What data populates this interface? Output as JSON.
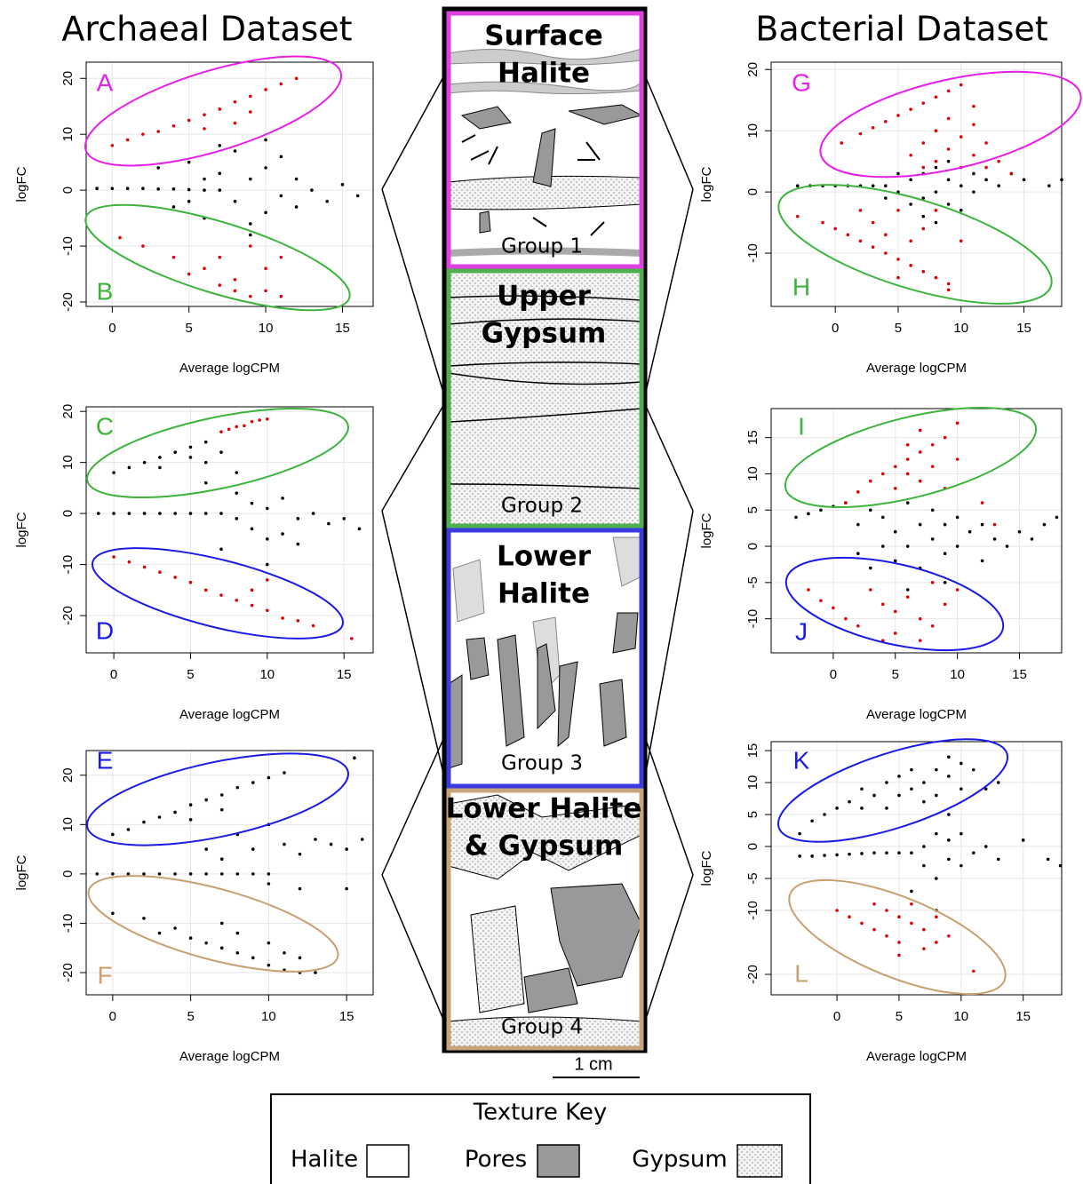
{
  "titles": {
    "left": "Archaeal Dataset",
    "right": "Bacterial Dataset"
  },
  "core": {
    "sections": [
      {
        "title": [
          "Surface",
          "Halite"
        ],
        "group": "Group 1",
        "color": "#e040e0"
      },
      {
        "title": [
          "Upper",
          "Gypsum"
        ],
        "group": "Group 2",
        "color": "#50b050"
      },
      {
        "title": [
          "Lower",
          "Halite"
        ],
        "group": "Group 3",
        "color": "#3a3ae0"
      },
      {
        "title": [
          "Lower Halite",
          "& Gypsum"
        ],
        "group": "Group 4",
        "color": "#c8a47a"
      }
    ],
    "scale": "1 cm"
  },
  "texture_key": {
    "title": "Texture Key",
    "items": [
      "Halite",
      "Pores",
      "Gypsum"
    ]
  },
  "chart_data": [
    {
      "type": "scatter",
      "xlabel": "Average logCPM",
      "ylabel": "logFC",
      "xlim": [
        -1.7,
        17.0
      ],
      "ylim": [
        -20.8,
        22.9
      ],
      "xticks": [
        0,
        5,
        10,
        15
      ],
      "yticks": [
        -20,
        -10,
        0,
        10,
        20
      ],
      "grid": true,
      "annotations": [
        {
          "text": "A",
          "color": "#e81ee8"
        },
        {
          "text": "B",
          "color": "#3cb43c"
        }
      ],
      "series": [
        {
          "color": "#000000",
          "x": [
            -1,
            0,
            1,
            2,
            3,
            4,
            5,
            6,
            7,
            3,
            4,
            5,
            6,
            7,
            8,
            8,
            9,
            9,
            10,
            10,
            11,
            11,
            12,
            12,
            13,
            14,
            15,
            16,
            7,
            9,
            10,
            6,
            5
          ],
          "values": [
            0.3,
            0.3,
            0.3,
            0.3,
            0.2,
            0.2,
            0.1,
            0,
            0,
            4,
            -3,
            5,
            -5,
            3,
            -2,
            7,
            -6,
            2,
            4,
            -4,
            -1,
            6,
            -3,
            2,
            0,
            -2,
            1,
            -1,
            8,
            -8,
            9,
            2,
            -2
          ]
        },
        {
          "color": "#e00000",
          "x": [
            0,
            1,
            2,
            3,
            4,
            5,
            6,
            7,
            8,
            9,
            10,
            11,
            12,
            6,
            8,
            9,
            0.5,
            2,
            4,
            6,
            8,
            10,
            11,
            5,
            7,
            8,
            9,
            10,
            11,
            7,
            9
          ],
          "values": [
            8,
            9,
            10,
            10.5,
            11.5,
            12.5,
            13.5,
            14.5,
            15.8,
            16.8,
            18,
            19,
            20,
            11,
            12,
            14,
            -8.5,
            -10,
            -12,
            -14,
            -16,
            -18,
            -19,
            -15,
            -12,
            -18,
            -10,
            -14,
            -12,
            -17,
            -19
          ]
        }
      ]
    },
    {
      "type": "scatter",
      "xlabel": "Average logCPM",
      "ylabel": "logFC",
      "xlim": [
        -1.8,
        16.9
      ],
      "ylim": [
        -27.3,
        20.9
      ],
      "xticks": [
        0,
        5,
        10,
        15
      ],
      "yticks": [
        -20,
        -10,
        0,
        10,
        20
      ],
      "grid": true,
      "annotations": [
        {
          "text": "C",
          "color": "#3cb43c"
        },
        {
          "text": "D",
          "color": "#1a1ae6"
        }
      ],
      "series": [
        {
          "color": "#000000",
          "x": [
            0,
            1,
            2,
            3,
            4,
            5,
            6,
            3,
            5,
            6,
            7,
            8,
            -1,
            0,
            1,
            2,
            3,
            4,
            5,
            6,
            7,
            8,
            9,
            9,
            10,
            10,
            11,
            11,
            12,
            12,
            13,
            14,
            15,
            16,
            7,
            8,
            10,
            6
          ],
          "values": [
            8,
            9,
            10,
            11,
            12,
            13,
            14,
            9,
            11,
            10,
            12,
            8,
            0,
            0,
            0,
            0,
            0,
            0,
            0,
            0,
            0,
            -1,
            -3,
            2,
            -5,
            1,
            -4,
            3,
            -6,
            -1,
            0,
            -2,
            -1,
            -3,
            -7,
            4,
            -10,
            6
          ]
        },
        {
          "color": "#e00000",
          "x": [
            7,
            7.5,
            8,
            8.5,
            9,
            9.5,
            10,
            0,
            1,
            2,
            3,
            4,
            5,
            6,
            7,
            8,
            9,
            10,
            11,
            12,
            13,
            15.5,
            9,
            10
          ],
          "values": [
            16,
            16.5,
            17,
            17.2,
            18,
            18.3,
            18.5,
            -8.5,
            -9.5,
            -10.5,
            -11.5,
            -12.5,
            -13.5,
            -15,
            -16,
            -17,
            -18,
            -19,
            -20.5,
            -21,
            -22,
            -24.5,
            -15,
            -13
          ]
        }
      ]
    },
    {
      "type": "scatter",
      "xlabel": "Average logCPM",
      "ylabel": "logFC",
      "xlim": [
        -1.7,
        16.7
      ],
      "ylim": [
        -24.5,
        25
      ],
      "xticks": [
        0,
        5,
        10,
        15
      ],
      "yticks": [
        -20,
        -10,
        0,
        10,
        20
      ],
      "grid": true,
      "annotations": [
        {
          "text": "E",
          "color": "#1a1ae6"
        },
        {
          "text": "F",
          "color": "#c8a070"
        }
      ],
      "series": [
        {
          "color": "#000000",
          "x": [
            0,
            1,
            2,
            3,
            4,
            5,
            6,
            7,
            8,
            9,
            10,
            11,
            15.5,
            5,
            7,
            -1,
            0,
            1,
            2,
            3,
            4,
            5,
            6,
            7,
            8,
            9,
            10,
            6,
            7,
            8,
            9,
            10,
            11,
            12,
            13,
            14,
            15,
            16,
            10,
            12,
            15,
            0,
            2,
            3,
            4,
            5,
            6,
            7,
            8,
            9,
            10,
            11,
            12,
            7,
            8,
            10,
            11,
            12,
            13
          ],
          "values": [
            8,
            9,
            10.5,
            11.5,
            12.5,
            14,
            15,
            16,
            17.5,
            18.5,
            19.5,
            20.5,
            23.5,
            11,
            13,
            0,
            0,
            0,
            0,
            0,
            0,
            0,
            0,
            0,
            0,
            0,
            0,
            5,
            3,
            8,
            5,
            10,
            6,
            4,
            7,
            6,
            5,
            7,
            -2,
            -3,
            -3,
            -8,
            -9,
            -12,
            -11,
            -13,
            -14,
            -15,
            -16,
            -17,
            -18.5,
            -19.5,
            -20,
            -10,
            -12,
            -14,
            -16,
            -17,
            -20
          ]
        }
      ]
    },
    {
      "type": "scatter",
      "xlabel": "Average logCPM",
      "ylabel": "logFC",
      "xlim": [
        -5.1,
        18.0
      ],
      "ylim": [
        -18.7,
        21.2
      ],
      "xticks": [
        0,
        5,
        10,
        15
      ],
      "yticks": [
        -10,
        0,
        10,
        20
      ],
      "grid": true,
      "annotations": [
        {
          "text": "G",
          "color": "#e81ee8"
        },
        {
          "text": "H",
          "color": "#3cb43c"
        }
      ],
      "series": [
        {
          "color": "#000000",
          "x": [
            -3,
            -2,
            -1,
            0,
            1,
            2,
            3,
            4,
            5,
            6,
            6,
            7,
            7,
            8,
            8,
            9,
            9,
            10,
            10,
            11,
            11,
            12,
            13,
            14,
            15,
            17,
            18,
            7,
            5,
            4,
            9,
            8
          ],
          "values": [
            1,
            1,
            1,
            1,
            1,
            1,
            1,
            1,
            0,
            2,
            -2,
            3,
            -1,
            0,
            4,
            -2,
            2,
            1,
            -3,
            3,
            0,
            2,
            1,
            3,
            2,
            1,
            2,
            -4,
            3,
            -1,
            5,
            -5
          ]
        },
        {
          "color": "#e00000",
          "x": [
            0.5,
            2,
            3,
            4,
            5,
            6,
            7,
            8,
            9,
            10,
            6,
            7,
            8,
            8,
            9,
            9,
            10,
            10,
            11,
            11,
            12,
            12,
            13,
            14,
            11,
            7,
            -3,
            -1,
            0,
            1,
            2,
            3,
            4,
            5,
            6,
            7,
            8,
            9,
            9,
            3,
            4,
            5,
            6,
            7,
            8,
            2,
            5,
            10
          ],
          "values": [
            8,
            9.5,
            10.5,
            11.5,
            12.5,
            13.5,
            14.5,
            15.5,
            16.5,
            17.5,
            6,
            8,
            5,
            10,
            7,
            12,
            4,
            9,
            6,
            11,
            8,
            4,
            5,
            3,
            14,
            4,
            -4,
            -5,
            -6,
            -7,
            -8,
            -9,
            -10,
            -11,
            -12,
            -13,
            -14,
            -15,
            -16,
            -5,
            -7,
            -3,
            -8,
            -6,
            -3,
            -3,
            -14,
            -8
          ]
        }
      ]
    },
    {
      "type": "scatter",
      "xlabel": "Average logCPM",
      "ylabel": "logFC",
      "xlim": [
        -5.0,
        18.4
      ],
      "ylim": [
        -14.7,
        19.0
      ],
      "xticks": [
        0,
        5,
        10,
        15
      ],
      "yticks": [
        -10,
        -5,
        0,
        5,
        10,
        15
      ],
      "grid": true,
      "annotations": [
        {
          "text": "I",
          "color": "#3cb43c"
        },
        {
          "text": "J",
          "color": "#1a1ae6"
        }
      ],
      "series": [
        {
          "color": "#000000",
          "x": [
            -3,
            -2,
            -1,
            0,
            1,
            2,
            3,
            4,
            4,
            5,
            5,
            6,
            6,
            7,
            7,
            8,
            8,
            9,
            9,
            10,
            10,
            11,
            12,
            12,
            13,
            14,
            15,
            16,
            17,
            18,
            2,
            3,
            6,
            9
          ],
          "values": [
            4,
            4.5,
            5,
            5.5,
            6,
            3,
            5,
            0,
            4,
            -2,
            2,
            6,
            0,
            3,
            -3,
            1,
            5,
            -1,
            3,
            0,
            4,
            2,
            -2,
            3,
            1,
            0,
            2,
            1,
            3,
            4,
            -1,
            -3,
            -6,
            -5
          ]
        },
        {
          "color": "#e00000",
          "x": [
            1,
            2,
            3,
            4,
            5,
            6,
            7,
            8,
            9,
            10,
            5,
            6,
            7,
            8,
            9,
            10,
            6,
            7,
            12,
            13,
            -2,
            -1,
            0,
            1,
            2,
            3,
            4,
            5,
            5,
            6,
            7,
            8,
            8,
            9,
            10,
            4,
            7
          ],
          "values": [
            6,
            7.5,
            9,
            10,
            11,
            12,
            13,
            14,
            15,
            17,
            8,
            10,
            9,
            11,
            8,
            12,
            14,
            16,
            6,
            3,
            -6,
            -7.5,
            -8.5,
            -10,
            -11,
            -6,
            -8,
            -9,
            -12,
            -7,
            -10,
            -5,
            -11,
            -8,
            -6,
            -13,
            -13
          ]
        }
      ]
    },
    {
      "type": "scatter",
      "xlabel": "Average logCPM",
      "ylabel": "logFC",
      "xlim": [
        -5.3,
        18.1
      ],
      "ylim": [
        -23.2,
        16.4
      ],
      "xticks": [
        0,
        5,
        10,
        15
      ],
      "yticks": [
        -20,
        -10,
        -5,
        0,
        5,
        10,
        15
      ],
      "grid": true,
      "annotations": [
        {
          "text": "K",
          "color": "#1a1ae6"
        },
        {
          "text": "L",
          "color": "#c8a070"
        }
      ],
      "series": [
        {
          "color": "#000000",
          "x": [
            -3,
            -2,
            -1,
            0,
            1,
            2,
            2,
            3,
            4,
            4,
            5,
            5,
            6,
            6,
            7,
            7,
            8,
            8,
            9,
            9,
            10,
            10,
            11,
            12,
            13,
            9,
            -3,
            -2,
            -1,
            0,
            1,
            2,
            3,
            4,
            5,
            6,
            7,
            7,
            8,
            8,
            9,
            9,
            10,
            10,
            11,
            12,
            13,
            15,
            17,
            18,
            6,
            8
          ],
          "values": [
            2,
            4,
            5,
            6,
            7,
            6,
            9,
            8,
            10,
            6,
            11,
            8,
            9,
            12,
            7,
            10,
            12,
            8,
            11,
            14,
            9,
            13,
            12,
            9,
            10,
            5,
            -1.5,
            -1.5,
            -1.4,
            -1.3,
            -1.2,
            -1.1,
            -1,
            -1,
            -1,
            -1,
            0,
            -3,
            -5,
            2,
            -2,
            1,
            -3,
            2,
            -1,
            0,
            -2,
            1,
            -2,
            -3,
            -7,
            -10
          ]
        },
        {
          "color": "#e00000",
          "x": [
            0,
            1,
            2,
            3,
            3,
            4,
            4,
            5,
            5,
            6,
            6,
            7,
            7,
            8,
            8,
            9,
            11,
            5
          ],
          "values": [
            -10,
            -11,
            -12,
            -9,
            -13,
            -10,
            -14,
            -11,
            -15,
            -12,
            -9,
            -13,
            -16,
            -11,
            -15,
            -14,
            -19.5,
            -17
          ]
        }
      ]
    }
  ]
}
